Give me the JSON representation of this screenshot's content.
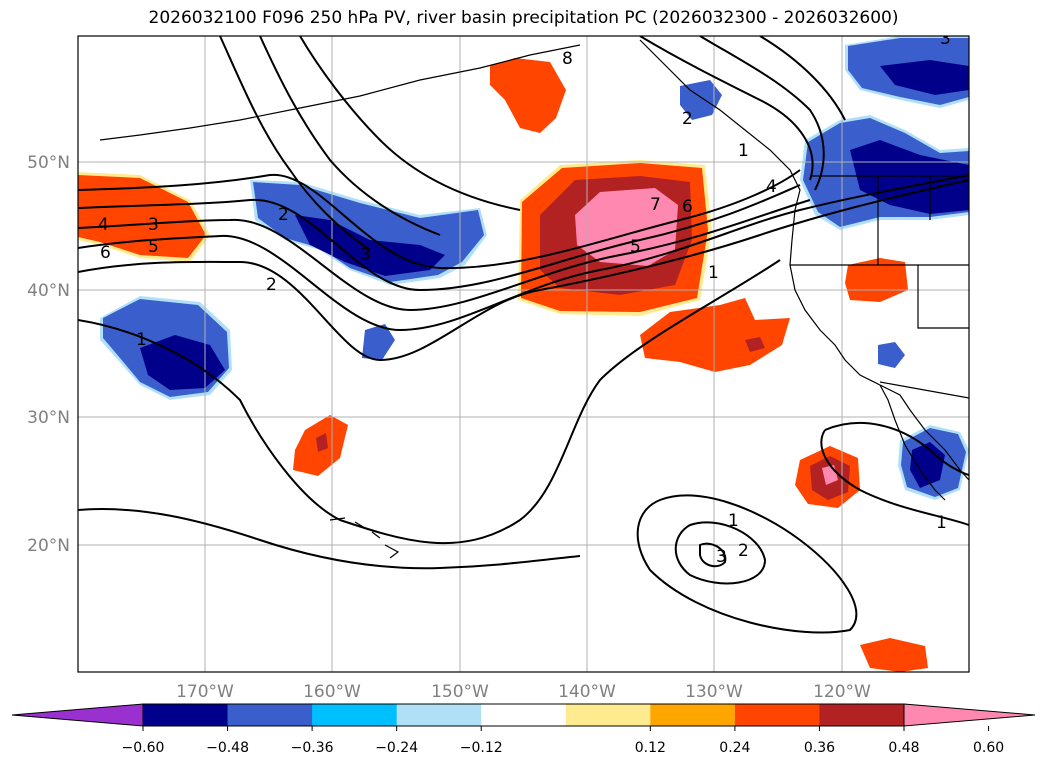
{
  "title": "2026032100 F096 250 hPa PV, river basin precipitation PC (2026032300 - 2026032600)",
  "map": {
    "lon_ticks": [
      "170°W",
      "160°W",
      "150°W",
      "140°W",
      "130°W",
      "120°W"
    ],
    "lat_ticks": [
      "50°N",
      "40°N",
      "30°N",
      "20°N"
    ],
    "contour_labels": [
      "1",
      "2",
      "3",
      "4",
      "5",
      "6",
      "7",
      "8",
      "1",
      "2",
      "3",
      "4",
      "5",
      "6",
      "1",
      "2",
      "3",
      "1",
      "1",
      "2",
      "3"
    ]
  },
  "colorbar": {
    "tick_labels": [
      "-0.60",
      "-0.48",
      "-0.36",
      "-0.24",
      "-0.12",
      "0.12",
      "0.24",
      "0.36",
      "0.48",
      "0.60"
    ],
    "colors": [
      "#9b30d0",
      "#00008b",
      "#3a5fcd",
      "#00bfff",
      "#b0e0f8",
      "#ffffff",
      "#ffeb8f",
      "#ffa500",
      "#ff4500",
      "#b22222",
      "#ff88b0"
    ]
  }
}
